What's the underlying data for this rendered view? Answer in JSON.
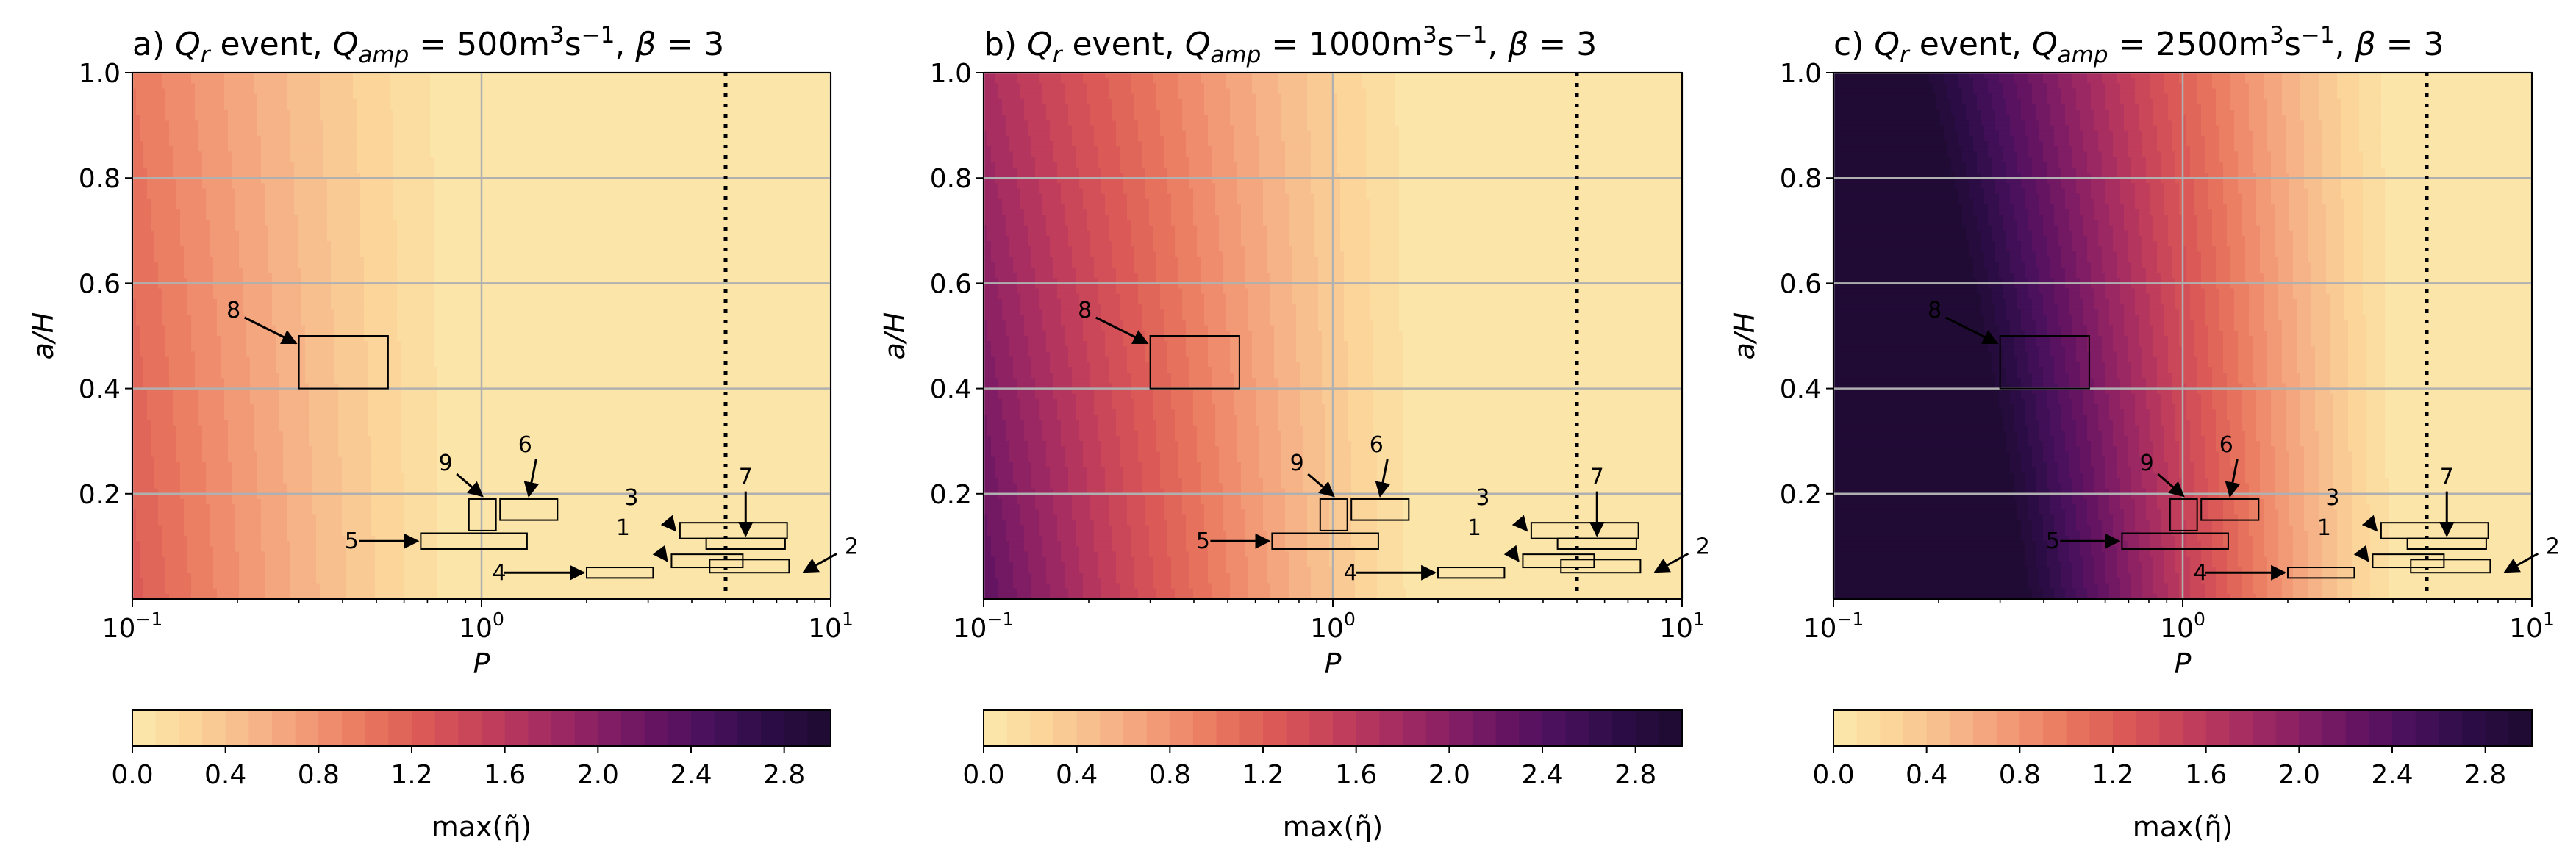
{
  "figure": {
    "xlabel": "P",
    "ylabel": "a/H",
    "colorbar_label": "max(η̃)",
    "cmap_colors": [
      "#fce9ab",
      "#fbd59a",
      "#f7b98b",
      "#f29a76",
      "#e9785f",
      "#db5a57",
      "#c6415a",
      "#a82e61",
      "#871f64",
      "#651462",
      "#45105a",
      "#2b0c45",
      "#1d0b31"
    ],
    "cmap_range": [
      0,
      3.0
    ],
    "cmap_levels": 30,
    "colorbar_ticks": [
      0.0,
      0.4,
      0.8,
      1.2,
      1.6,
      2.0,
      2.4,
      2.8
    ],
    "colorbar_tick_labels": [
      "0.0",
      "0.4",
      "0.8",
      "1.2",
      "1.6",
      "2.0",
      "2.4",
      "2.8"
    ],
    "y_ticks": [
      0.2,
      0.4,
      0.6,
      0.8,
      1.0
    ],
    "y_tick_labels": [
      "0.2",
      "0.4",
      "0.6",
      "0.8",
      "1.0"
    ],
    "x_ticks": [
      0.1,
      1,
      10
    ],
    "x_tick_bases": [
      "10",
      "10",
      "10"
    ],
    "x_tick_exps": [
      "−1",
      "0",
      "1"
    ]
  },
  "chart_data": [
    {
      "type": "heatmap",
      "title": {
        "prefix": "a) ",
        "qr": "Q",
        "qr_sub": "r",
        "mid": " event, ",
        "qamp": "Q",
        "qamp_sub": "amp",
        "value": " = 500m",
        "sup1": "3",
        "s": "s",
        "sup2": "−1",
        "tail": ", ",
        "beta": "β",
        "beta_val": " = 3"
      },
      "xscale": "log",
      "xlim": [
        0.1,
        10
      ],
      "ylim": [
        0.0,
        1.0
      ],
      "field": {
        "z_at_P01_y0": 1.25,
        "z_at_P01_y1": 1.0,
        "saturation_P": 1.0
      },
      "vline_x": 5,
      "boxes": [
        {
          "id": "1",
          "x": [
            3.5,
            5.6
          ],
          "y": [
            0.06,
            0.085
          ]
        },
        {
          "id": "2",
          "x": [
            4.5,
            7.6
          ],
          "y": [
            0.05,
            0.075
          ]
        },
        {
          "id": "3",
          "x": [
            3.7,
            7.5
          ],
          "y": [
            0.115,
            0.145
          ]
        },
        {
          "id": "4",
          "x": [
            2.0,
            3.1
          ],
          "y": [
            0.04,
            0.06
          ]
        },
        {
          "id": "5",
          "x": [
            0.67,
            1.35
          ],
          "y": [
            0.095,
            0.125
          ]
        },
        {
          "id": "6",
          "x": [
            1.13,
            1.65
          ],
          "y": [
            0.15,
            0.19
          ]
        },
        {
          "id": "7",
          "x": [
            4.4,
            7.4
          ],
          "y": [
            0.095,
            0.115
          ]
        },
        {
          "id": "8",
          "x": [
            0.3,
            0.54
          ],
          "y": [
            0.4,
            0.5
          ]
        },
        {
          "id": "9",
          "x": [
            0.92,
            1.1
          ],
          "y": [
            0.13,
            0.19
          ]
        }
      ]
    },
    {
      "type": "heatmap",
      "title": {
        "prefix": "b) ",
        "qr": "Q",
        "qr_sub": "r",
        "mid": " event, ",
        "qamp": "Q",
        "qamp_sub": "amp",
        "value": " = 1000m",
        "sup1": "3",
        "s": "s",
        "sup2": "−1",
        "tail": ", ",
        "beta": "β",
        "beta_val": " = 3"
      },
      "xscale": "log",
      "xlim": [
        0.1,
        10
      ],
      "ylim": [
        0.0,
        1.0
      ],
      "field": {
        "z_at_P01_y0": 2.3,
        "z_at_P01_y1": 1.75,
        "saturation_P": 2.0
      },
      "vline_x": 5,
      "boxes": [
        {
          "id": "1",
          "x": [
            3.5,
            5.6
          ],
          "y": [
            0.06,
            0.085
          ]
        },
        {
          "id": "2",
          "x": [
            4.5,
            7.6
          ],
          "y": [
            0.05,
            0.075
          ]
        },
        {
          "id": "3",
          "x": [
            3.7,
            7.5
          ],
          "y": [
            0.115,
            0.145
          ]
        },
        {
          "id": "4",
          "x": [
            2.0,
            3.1
          ],
          "y": [
            0.04,
            0.06
          ]
        },
        {
          "id": "5",
          "x": [
            0.67,
            1.35
          ],
          "y": [
            0.095,
            0.125
          ]
        },
        {
          "id": "6",
          "x": [
            1.13,
            1.65
          ],
          "y": [
            0.15,
            0.19
          ]
        },
        {
          "id": "7",
          "x": [
            4.4,
            7.4
          ],
          "y": [
            0.095,
            0.115
          ]
        },
        {
          "id": "8",
          "x": [
            0.3,
            0.54
          ],
          "y": [
            0.4,
            0.5
          ]
        },
        {
          "id": "9",
          "x": [
            0.92,
            1.1
          ],
          "y": [
            0.13,
            0.19
          ]
        }
      ]
    },
    {
      "type": "heatmap",
      "title": {
        "prefix": "c) ",
        "qr": "Q",
        "qr_sub": "r",
        "mid": " event, ",
        "qamp": "Q",
        "qamp_sub": "amp",
        "value": " = 2500m",
        "sup1": "3",
        "s": "s",
        "sup2": "−1",
        "tail": ", ",
        "beta": "β",
        "beta_val": " = 3"
      },
      "xscale": "log",
      "xlim": [
        0.1,
        10
      ],
      "ylim": [
        0.0,
        1.0
      ],
      "field": {
        "z_at_P01_y0": 4.8,
        "z_at_P01_y1": 3.6,
        "saturation_P": 4.5
      },
      "vline_x": 5,
      "boxes": [
        {
          "id": "1",
          "x": [
            3.5,
            5.6
          ],
          "y": [
            0.06,
            0.085
          ]
        },
        {
          "id": "2",
          "x": [
            4.5,
            7.6
          ],
          "y": [
            0.05,
            0.075
          ]
        },
        {
          "id": "3",
          "x": [
            3.7,
            7.5
          ],
          "y": [
            0.115,
            0.145
          ]
        },
        {
          "id": "4",
          "x": [
            2.0,
            3.1
          ],
          "y": [
            0.04,
            0.06
          ]
        },
        {
          "id": "5",
          "x": [
            0.67,
            1.35
          ],
          "y": [
            0.095,
            0.125
          ]
        },
        {
          "id": "6",
          "x": [
            1.13,
            1.65
          ],
          "y": [
            0.15,
            0.19
          ]
        },
        {
          "id": "7",
          "x": [
            4.4,
            7.4
          ],
          "y": [
            0.095,
            0.115
          ]
        },
        {
          "id": "8",
          "x": [
            0.3,
            0.54
          ],
          "y": [
            0.4,
            0.5
          ]
        },
        {
          "id": "9",
          "x": [
            0.92,
            1.1
          ],
          "y": [
            0.13,
            0.19
          ]
        }
      ]
    }
  ]
}
